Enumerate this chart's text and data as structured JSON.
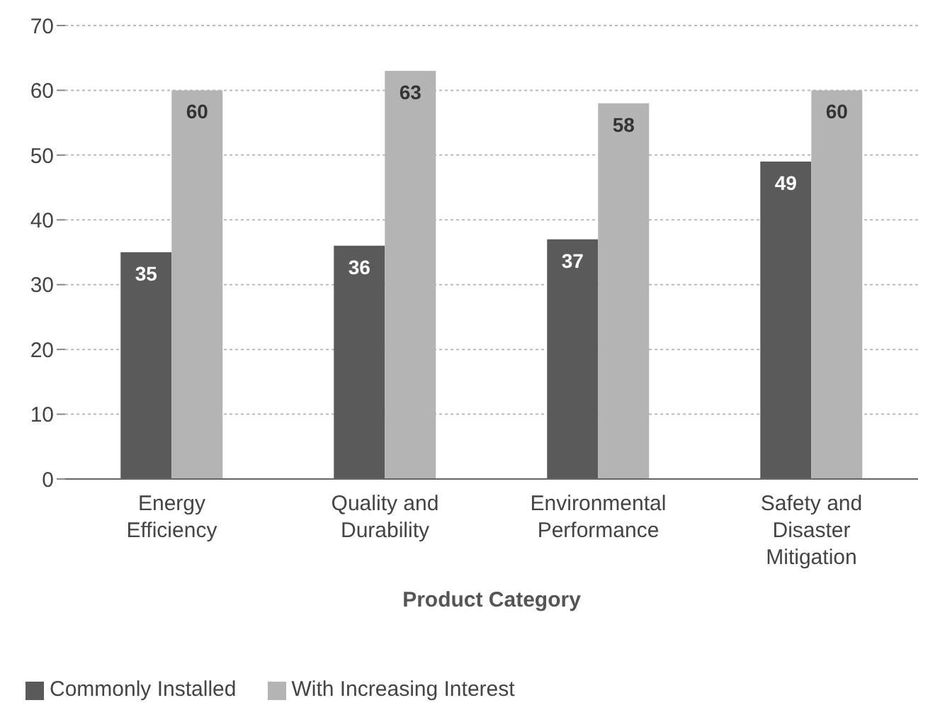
{
  "chart_data": {
    "type": "bar",
    "xlabel": "Product Category",
    "categories": [
      "Energy Efficiency",
      "Quality and Durability",
      "Environmental Performance",
      "Safety and Disaster Mitigation"
    ],
    "series": [
      {
        "name": "Commonly Installed",
        "color": "#5a5a5a",
        "values": [
          35,
          36,
          37,
          49
        ]
      },
      {
        "name": "With Increasing Interest",
        "color": "#b4b4b4",
        "values": [
          60,
          63,
          58,
          60
        ]
      }
    ],
    "ylim": [
      0,
      70
    ],
    "yticks": [
      0,
      10,
      20,
      30,
      40,
      50,
      60,
      70
    ],
    "grid": "y",
    "legend": "bottom left",
    "data_labels": true
  }
}
